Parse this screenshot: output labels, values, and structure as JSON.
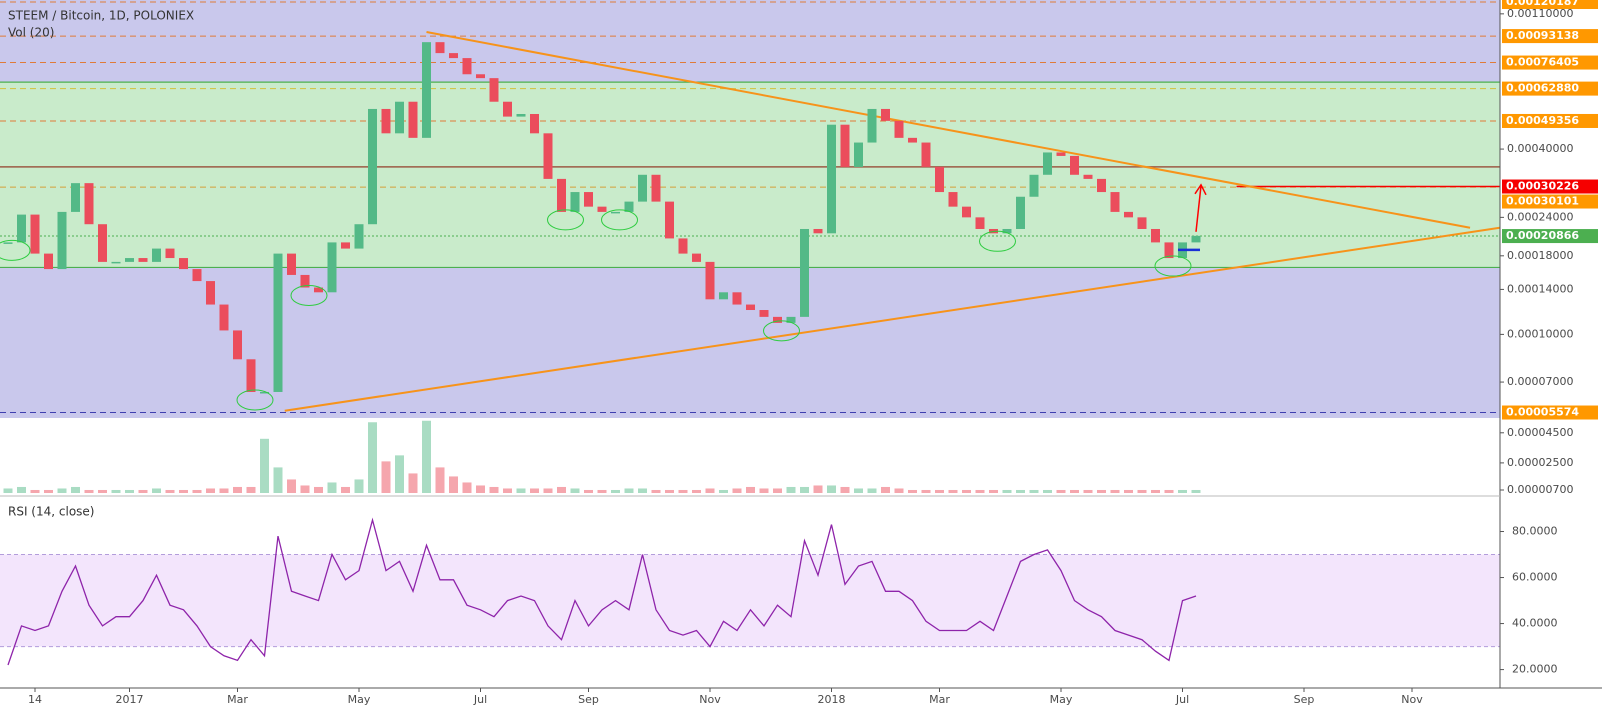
{
  "chart_data": [
    {
      "type": "candlestick",
      "title": "STEEM / Bitcoin, 1D, POLONIEX",
      "subtitle": "Vol (20)",
      "log_scale": true,
      "ylim": [
        5.35e-05,
        0.00122
      ],
      "yticks": [
        {
          "value": 0.0011,
          "label": "0.00110000"
        },
        {
          "value": 0.0004,
          "label": "0.00040000"
        },
        {
          "value": 0.00024,
          "label": "0.00024000"
        },
        {
          "value": 0.00018,
          "label": "0.00018000"
        },
        {
          "value": 0.00014,
          "label": "0.00014000"
        },
        {
          "value": 0.0001,
          "label": "0.00010000"
        },
        {
          "value": 7e-05,
          "label": "0.00007000"
        }
      ],
      "up_color": "#53b987",
      "down_color": "#eb4d5c",
      "background": "#c9c8ec",
      "values": [
        0.000199,
        0.000245,
        0.000183,
        0.000163,
        0.00025,
        0.00031,
        0.000228,
        0.000172,
        0.000172,
        0.000177,
        0.000172,
        0.00019,
        0.000177,
        0.000163,
        0.000149,
        0.000125,
        0.000103,
        8.3e-05,
        6.5e-05,
        6.5e-05,
        0.000183,
        0.000156,
        0.000142,
        0.000137,
        0.000199,
        0.00019,
        0.000228,
        0.00054,
        0.00045,
        0.00057,
        0.000435,
        0.00089,
        0.00082,
        0.00079,
        0.0007,
        0.00068,
        0.00057,
        0.00051,
        0.00052,
        0.00045,
        0.00032,
        0.00025,
        0.00029,
        0.00026,
        0.00025,
        0.00025,
        0.00027,
        0.00033,
        0.00027,
        0.000205,
        0.000183,
        0.000172,
        0.00013,
        0.000137,
        0.000125,
        0.00012,
        0.000114,
        0.000109,
        0.000114,
        0.00022,
        0.000213,
        0.00048,
        0.00035,
        0.00042,
        0.00054,
        0.000494,
        0.000435,
        0.00042,
        0.00035,
        0.00029,
        0.00026,
        0.00024,
        0.00022,
        0.000213,
        0.00022,
        0.00028,
        0.00033,
        0.00039,
        0.00038,
        0.00033,
        0.00032,
        0.00029,
        0.00025,
        0.00024,
        0.00022,
        0.000199,
        0.000177,
        0.000199,
        0.000209,
        null,
        null,
        null,
        null,
        null,
        null,
        null,
        null,
        null,
        null,
        null,
        null,
        null,
        null,
        null,
        null,
        null,
        null,
        null,
        null,
        null,
        null
      ],
      "zones": [
        {
          "from": 0.000165,
          "to": 0.00066,
          "color": "#c9ebcb",
          "border": "#4caf50"
        }
      ],
      "levels": [
        {
          "value": 0.00120187,
          "label": "0.00120187",
          "color": "#ff9800",
          "line_color": "#e07b39",
          "style": "dashed"
        },
        {
          "value": 0.00093138,
          "label": "0.00093138",
          "color": "#ff9800",
          "line_color": "#e07b39",
          "style": "dashed"
        },
        {
          "value": 0.00076405,
          "label": "0.00076405",
          "color": "#ff9800",
          "line_color": "#e07b39",
          "style": "dashed"
        },
        {
          "value": 0.0006288,
          "label": "0.00062880",
          "color": "#ff9800",
          "line_color": "#d4c13a",
          "style": "dashed"
        },
        {
          "value": 0.00049356,
          "label": "0.00049356",
          "color": "#ff9800",
          "line_color": "#e07b39",
          "style": "dashed"
        },
        {
          "value": 0.00035,
          "line_color": "#9c5b45",
          "style": "solid"
        },
        {
          "value": 0.00030101,
          "label": "0.00030101",
          "color": "#ff9800",
          "line_color": "#d4a13a",
          "style": "dashed"
        },
        {
          "value": 0.00030226,
          "label": "0.00030226",
          "color": "#f60000",
          "line_color": "#f60000",
          "style": "solid",
          "start": 91
        },
        {
          "value": 0.00020866,
          "label": "0.00020866",
          "color": "#4caf50",
          "line_color": "#4caf50",
          "style": "dotted"
        },
        {
          "value": 5.574e-05,
          "label": "0.00005574",
          "color": "#ff9800",
          "line_color": "#3f3fb0",
          "style": "dashed"
        }
      ],
      "trendlines": [
        {
          "x": [
            31,
            108.3
          ],
          "y": [
            0.00096,
            0.000222
          ],
          "color": "#f7931a"
        },
        {
          "x": [
            20.5,
            110.5
          ],
          "y": [
            5.65e-05,
            0.000222
          ],
          "color": "#f7931a"
        }
      ],
      "volume": {
        "ylim": [
          5e-06,
          5.35e-05
        ],
        "yticks": [
          {
            "value": 4.5e-05,
            "label": "0.00004500"
          },
          {
            "value": 2.5e-05,
            "label": "0.00002500"
          },
          {
            "value": 7e-06,
            "label": "0.00000700"
          }
        ],
        "values": [
          8e-06,
          9e-06,
          7e-06,
          7e-06,
          8e-06,
          9e-06,
          7e-06,
          7e-06,
          7e-06,
          7e-06,
          7e-06,
          8e-06,
          7e-06,
          7e-06,
          7e-06,
          8e-06,
          8e-06,
          9e-06,
          9e-06,
          4.1e-05,
          2.2e-05,
          1.4e-05,
          1e-05,
          9e-06,
          1.2e-05,
          9e-06,
          1.4e-05,
          5.2e-05,
          2.6e-05,
          3e-05,
          1.8e-05,
          5.3e-05,
          2.2e-05,
          1.6e-05,
          1.2e-05,
          1e-05,
          9e-06,
          8e-06,
          8e-06,
          8e-06,
          8e-06,
          9e-06,
          8e-06,
          7e-06,
          7e-06,
          7e-06,
          8e-06,
          8e-06,
          7e-06,
          7e-06,
          7e-06,
          7e-06,
          8e-06,
          7e-06,
          8e-06,
          9e-06,
          8e-06,
          8e-06,
          9e-06,
          9e-06,
          1e-05,
          1e-05,
          9e-06,
          8e-06,
          8e-06,
          9e-06,
          8e-06,
          7e-06,
          7e-06,
          7e-06,
          7e-06,
          7e-06,
          7e-06,
          7e-06,
          7e-06,
          7e-06,
          7e-06,
          7e-06,
          7e-06,
          7e-06,
          7e-06,
          7e-06,
          7e-06,
          7e-06,
          7e-06,
          7e-06,
          7e-06,
          7e-06,
          7e-06,
          null,
          null,
          null,
          null,
          null,
          null,
          null,
          null,
          null,
          null,
          null,
          null,
          null,
          null,
          null,
          null,
          null,
          null,
          null,
          null,
          null,
          null
        ]
      }
    },
    {
      "type": "line",
      "title": "RSI (14, close)",
      "color": "#8e24aa",
      "band": [
        30,
        70
      ],
      "band_color": "#f3e5fc",
      "ylim": [
        12,
        95
      ],
      "yticks": [
        {
          "value": 80,
          "label": "80.0000"
        },
        {
          "value": 60,
          "label": "60.0000"
        },
        {
          "value": 40,
          "label": "40.0000"
        },
        {
          "value": 20,
          "label": "20.0000"
        }
      ],
      "categories": [
        null,
        null,
        "14",
        null,
        null,
        null,
        null,
        null,
        null,
        "2017",
        null,
        null,
        null,
        null,
        null,
        null,
        null,
        "Mar",
        null,
        null,
        null,
        null,
        null,
        null,
        null,
        null,
        "May",
        null,
        null,
        null,
        null,
        null,
        null,
        null,
        null,
        "Jul",
        null,
        null,
        null,
        null,
        null,
        null,
        null,
        "Sep",
        null,
        null,
        null,
        null,
        null,
        null,
        null,
        null,
        "Nov",
        null,
        null,
        null,
        null,
        null,
        null,
        null,
        null,
        "2018",
        null,
        null,
        null,
        null,
        null,
        null,
        null,
        "Mar",
        null,
        null,
        null,
        null,
        null,
        null,
        null,
        null,
        "May",
        null,
        null,
        null,
        null,
        null,
        null,
        null,
        null,
        "Jul",
        null,
        null,
        null,
        null,
        null,
        null,
        null,
        null,
        "Sep",
        null,
        null,
        null,
        null,
        null,
        null,
        null,
        "Nov",
        null,
        null,
        null,
        null,
        null,
        null
      ],
      "values": [
        22,
        39,
        37,
        39,
        54,
        65,
        48,
        39,
        43,
        43,
        50,
        61,
        48,
        46,
        39,
        30,
        26,
        24,
        33,
        26,
        78,
        54,
        52,
        50,
        70,
        59,
        63,
        85,
        63,
        67,
        54,
        74,
        59,
        59,
        48,
        46,
        43,
        50,
        52,
        50,
        39,
        33,
        50,
        39,
        46,
        50,
        46,
        70,
        46,
        37,
        35,
        37,
        30,
        41,
        37,
        46,
        39,
        48,
        43,
        76,
        61,
        83,
        57,
        65,
        67,
        54,
        54,
        50,
        41,
        37,
        37,
        37,
        41,
        37,
        52,
        67,
        70,
        72,
        63,
        50,
        46,
        43,
        37,
        35,
        33,
        28,
        24,
        50,
        52,
        null,
        null,
        null,
        null,
        null,
        null,
        null,
        null,
        null,
        null,
        null,
        null,
        null,
        null,
        null,
        null,
        null,
        null,
        null,
        null,
        null,
        null
      ]
    }
  ]
}
